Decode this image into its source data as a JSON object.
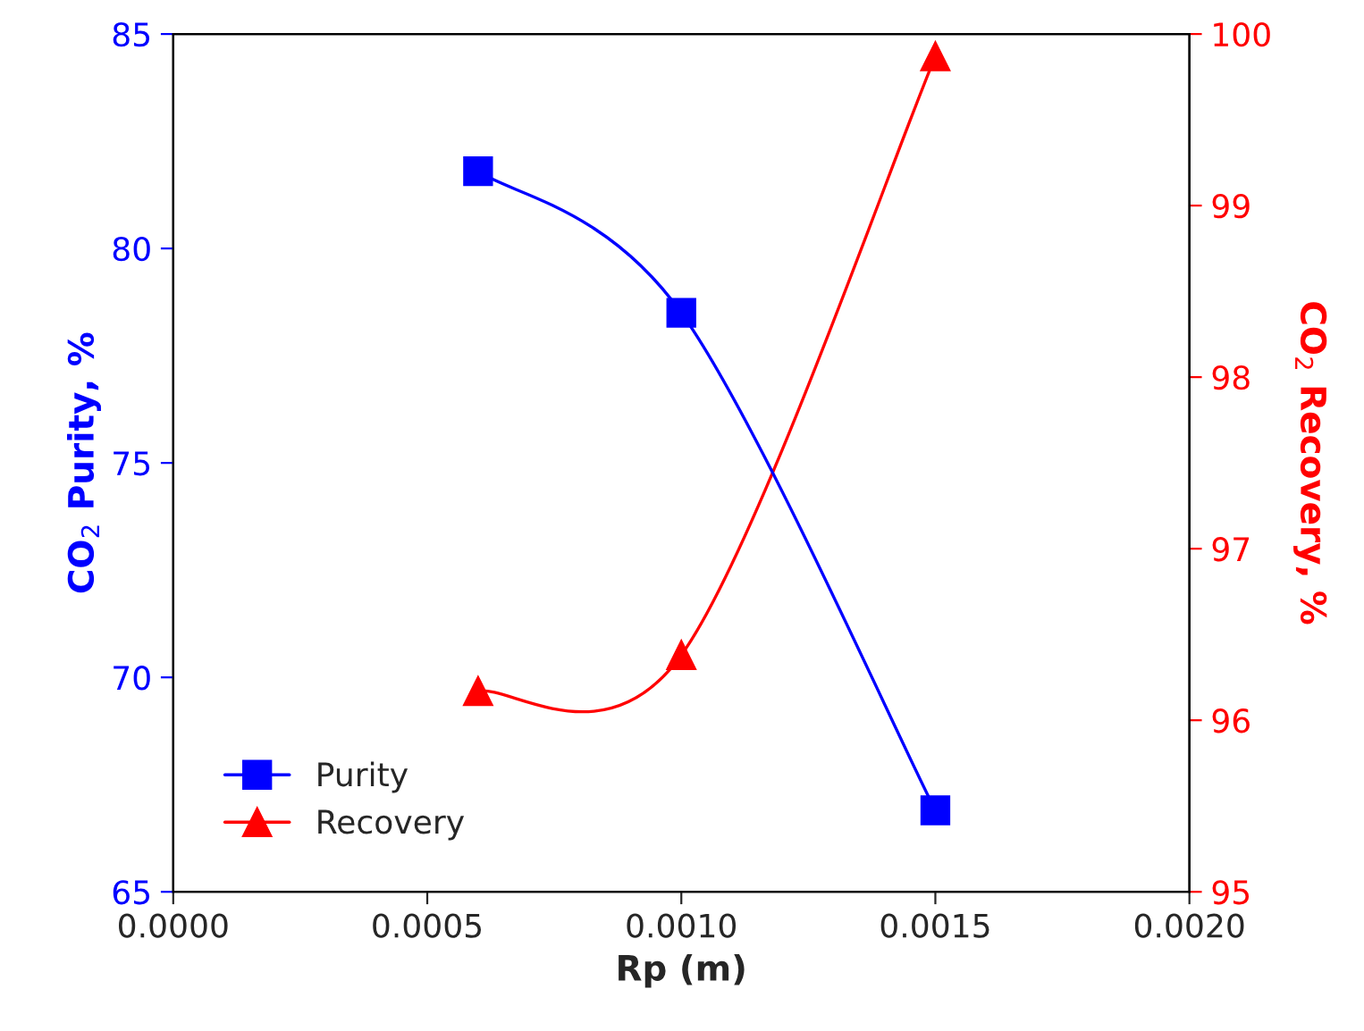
{
  "chart_data": {
    "type": "line",
    "xlabel": "Rp (m)",
    "ylabel": "CO$_{2}$ Purity, %",
    "y2label": "CO$_{2}$ Recovery, %",
    "x": [
      0.0006,
      0.001,
      0.0015
    ],
    "series": [
      {
        "name": "Purity",
        "color": "#0000ff",
        "values": [
          81.8,
          78.5,
          66.9
        ],
        "marker": "square"
      },
      {
        "name": "Recovery",
        "color": "#ff0000",
        "values": [
          96.17,
          96.38,
          99.87
        ],
        "marker": "triangle",
        "axis": "y2"
      }
    ],
    "xlim": [
      0,
      0.002
    ],
    "xticks": [
      {
        "value": 0,
        "label": "0.0000"
      },
      {
        "value": 0.0005,
        "label": "0.0005"
      },
      {
        "value": 0.001,
        "label": "0.0010"
      },
      {
        "value": 0.0015,
        "label": "0.0015"
      },
      {
        "value": 0.002,
        "label": "0.0020"
      }
    ],
    "ylim": [
      65,
      85
    ],
    "yticks": [
      65,
      70,
      75,
      80,
      85
    ],
    "y2lim": [
      95,
      100
    ],
    "y2ticks": [
      95,
      96,
      97,
      98,
      99,
      100
    ],
    "grid": false,
    "legend": "bottom left",
    "line_style": "solid"
  }
}
